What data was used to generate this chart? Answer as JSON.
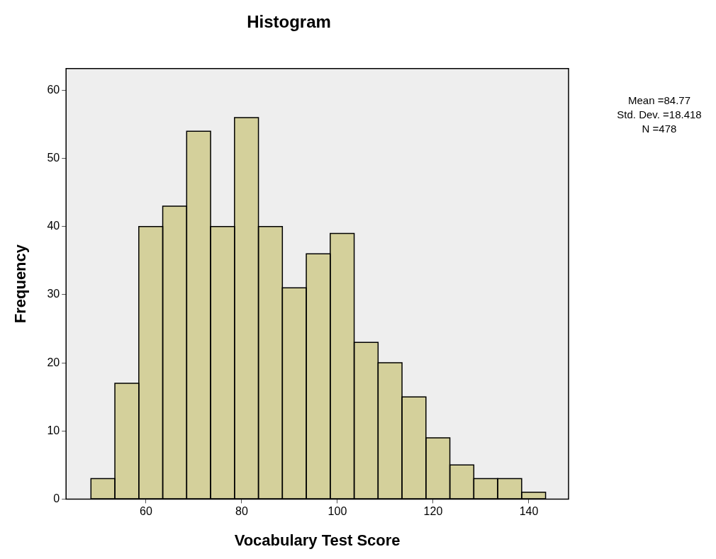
{
  "chart_data": {
    "type": "histogram",
    "title": "Histogram",
    "xlabel": "Vocabulary Test Score",
    "ylabel": "Frequency",
    "bins": [
      48.5,
      53.5,
      58.5,
      63.5,
      68.5,
      73.5,
      78.5,
      83.5,
      88.5,
      93.5,
      98.5,
      103.5,
      108.5,
      113.5,
      118.5,
      123.5,
      128.5,
      133.5,
      138.5,
      143.5
    ],
    "values": [
      3,
      17,
      40,
      43,
      54,
      40,
      56,
      40,
      31,
      36,
      39,
      23,
      20,
      15,
      9,
      5,
      3,
      3,
      1
    ],
    "color": "#d4d09b",
    "xlim": [
      43.3,
      148.3
    ],
    "xticks": [
      60,
      80,
      100,
      120,
      140
    ],
    "ylim": [
      0,
      63.2
    ],
    "yticks": [
      0,
      10,
      20,
      30,
      40,
      50,
      60
    ],
    "grid": false,
    "legend": false,
    "annotations": [
      "Mean =84.77",
      "Std. Dev. =18.418",
      "N =478"
    ]
  }
}
